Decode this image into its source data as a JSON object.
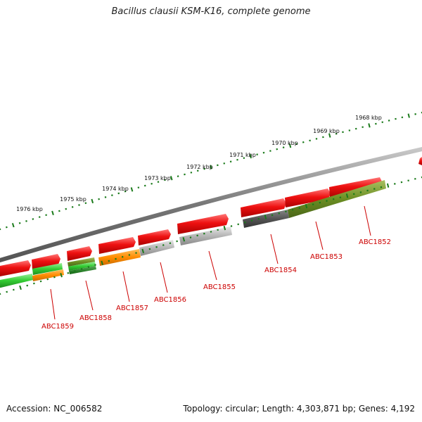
{
  "title": "Bacillus clausii KSM-K16, complete genome",
  "footer": {
    "accession": "Accession: NC_006582",
    "summary": "Topology: circular; Length: 4,303,871 bp; Genes: 4,192"
  },
  "colors": {
    "backbone": "#808080",
    "ticks": "#1a7a1a",
    "label_red": "#cc0000",
    "cds_red": "#ee1111",
    "gray_light": "#b8b8b8",
    "gray_dark": "#555555",
    "olive": "#6b8e23",
    "orange": "#ff8c00",
    "green": "#33cc33"
  },
  "ruler": {
    "labels": [
      "1968 kbp",
      "1969 kbp",
      "1970 kbp",
      "1971 kbp",
      "1972 kbp",
      "1973 kbp",
      "1974 kbp",
      "1975 kbp",
      "1976 kbp"
    ]
  },
  "genes": [
    {
      "name": "ABC1852"
    },
    {
      "name": "ABC1853"
    },
    {
      "name": "ABC1854"
    },
    {
      "name": "ABC1855"
    },
    {
      "name": "ABC1856"
    },
    {
      "name": "ABC1857"
    },
    {
      "name": "ABC1858"
    },
    {
      "name": "ABC1859"
    }
  ]
}
